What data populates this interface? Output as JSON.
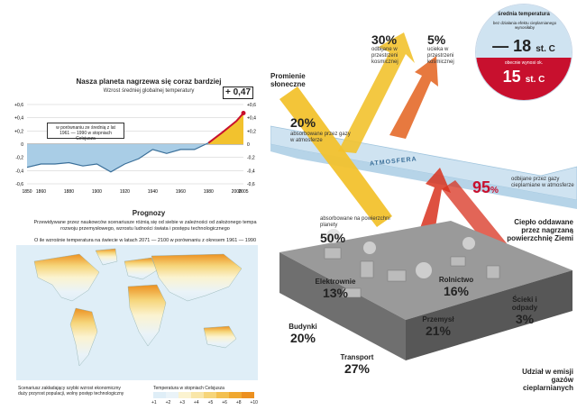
{
  "left": {
    "title": "Nasza planeta nagrzewa się coraz bardziej",
    "subtitle": "Wzrost średniej globalnej temperatury",
    "highlight_value": "+ 0,47",
    "note": "w porównaniu ze średnią z lat 1961 — 1990 w stopniach Celsjusza",
    "y_left_ticks": [
      "+0,6",
      "+0,4",
      "+0,2",
      "0",
      "-0,2",
      "-0,4",
      "-0,6"
    ],
    "y_right_ticks": [
      "+0,6",
      "+0,4",
      "+0,2",
      "0",
      "-0,2",
      "-0,4",
      "-0,6"
    ],
    "x_ticks": [
      "1850",
      "1860",
      "1880",
      "1900",
      "1920",
      "1940",
      "1960",
      "1980",
      "2000",
      "2005"
    ],
    "prognosis_title": "Prognozy",
    "prognosis_desc": "Przewidywane przez naukowców scenariusze różnią się od siebie w zależności od założonego tempa rozwoju przemysłowego, wzrostu ludności świata i postępu technologicznego",
    "prognosis_sub": "O ile wzrośnie temperatura na świecie w latach 2071 — 2100 w porównaniu z okresem 1961 — 1990",
    "scenario": "Scenariusz zakładający szybki wzrost ekonomiczny duży przyrost populacji, wolny postęp technologiczny",
    "legend_title": "Temperatura w stopniach Celsjusza",
    "legend_labels": [
      "+1",
      "+2",
      "+3",
      "+4",
      "+5",
      "+6",
      "+8",
      "+10"
    ],
    "legend_colors": [
      "#dfeef7",
      "#eaf3f8",
      "#fbf3d0",
      "#f9e6a8",
      "#f6d57a",
      "#f3c050",
      "#f0a830",
      "#ec9020"
    ]
  },
  "chart_data": {
    "type": "line",
    "title": "Nasza planeta nagrzewa się coraz bardziej",
    "subtitle": "Wzrost średniej globalnej temperatury",
    "xlabel": "",
    "ylabel": "",
    "ylim": [
      -0.6,
      0.6
    ],
    "xlim": [
      1850,
      2005
    ],
    "x": [
      1850,
      1860,
      1870,
      1880,
      1890,
      1900,
      1910,
      1920,
      1930,
      1940,
      1950,
      1960,
      1970,
      1980,
      1990,
      2000,
      2005
    ],
    "series": [
      {
        "values": [
          -0.35,
          -0.3,
          -0.3,
          -0.28,
          -0.33,
          -0.3,
          -0.42,
          -0.3,
          -0.22,
          -0.08,
          -0.14,
          -0.08,
          -0.08,
          0.02,
          0.18,
          0.35,
          0.47
        ]
      }
    ]
  },
  "right": {
    "sun_label": "Promienie słoneczne",
    "absorbed_atm_pct": "20%",
    "absorbed_atm_text": "absorbowane przez gazy w atmosferze",
    "reflected_pct": "30%",
    "reflected_text": "odbijane w przestrzeni kosmicznej",
    "escape_pct": "5%",
    "escape_text": "ucieka w przestrzeni kosmicznej",
    "atmosphere_label": "ATMOSFERA",
    "surface_pct": "50%",
    "surface_text": "absorbowane na powierzchni planety",
    "reflected_gases_pct": "95",
    "reflected_gases_pct_sign": "%",
    "reflected_gases_text": "odbijane przez gazy cieplarniane w atmosferze",
    "heat_text": "Ciepło oddawane przez nagrzaną powierzchnię Ziemi",
    "share_text": "Udział w emisji gazów cieplarnianych",
    "temp": {
      "title": "średnia temperatura",
      "without_label": "bez działania efektu cieplarnianego wynosiłaby",
      "without_value": "— 18",
      "without_unit": "st. C",
      "current_label": "obecnie wynosi ok.",
      "current_value": "15",
      "current_unit": "st. C"
    },
    "sectors": [
      {
        "label": "Elektrownie",
        "pct": "13%"
      },
      {
        "label": "Rolnictwo",
        "pct": "16%"
      },
      {
        "label": "Budynki",
        "pct": "20%"
      },
      {
        "label": "Przemysł",
        "pct": "21%"
      },
      {
        "label": "Ścieki i odpady",
        "pct": "3%"
      },
      {
        "label": "Transport",
        "pct": "27%"
      }
    ]
  },
  "colors": {
    "arrow_yellow": "#f2c22e",
    "arrow_red": "#d8321f",
    "atmosphere": "#cfe3f1",
    "red_curve": "#c8102e",
    "blue_fill": "#a9cde6"
  }
}
